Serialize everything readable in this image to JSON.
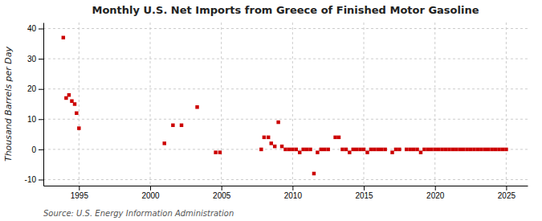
{
  "chart_data": {
    "type": "scatter",
    "title": "Monthly U.S. Net Imports from Greece of Finished Motor Gasoline",
    "ylabel": "Thousand Barrels per Day",
    "annotations": [
      "Source: U.S. Energy Information Administration"
    ],
    "color": "#cc0000",
    "marker": "square",
    "grid": true,
    "xlim": [
      1992.5,
      2026.5
    ],
    "ylim": [
      -12,
      42
    ],
    "xticks": [
      1995,
      2000,
      2005,
      2010,
      2015,
      2020,
      2025
    ],
    "yticks": [
      -10,
      0,
      10,
      20,
      30,
      40
    ],
    "x": [
      1993.9,
      1994.1,
      1994.3,
      1994.5,
      1994.7,
      1994.83,
      1995.0,
      2001.0,
      2001.6,
      2002.2,
      2003.3,
      2004.6,
      2004.9,
      2007.8,
      2008.0,
      2008.3,
      2008.5,
      2008.75,
      2009.0,
      2009.25,
      2009.5,
      2009.75,
      2010.0,
      2010.25,
      2010.5,
      2010.75,
      2011.0,
      2011.25,
      2011.5,
      2011.75,
      2012.0,
      2012.25,
      2012.5,
      2013.0,
      2013.25,
      2013.5,
      2013.75,
      2014.0,
      2014.25,
      2014.5,
      2014.75,
      2015.0,
      2015.25,
      2015.5,
      2015.75,
      2016.0,
      2016.25,
      2016.5,
      2017.0,
      2017.25,
      2017.5,
      2018.0,
      2018.25,
      2018.5,
      2018.75,
      2019.0,
      2019.25,
      2019.5,
      2019.75,
      2020.0,
      2020.25,
      2020.5,
      2020.75,
      2021.0,
      2021.25,
      2021.5,
      2021.75,
      2022.0,
      2022.25,
      2022.5,
      2022.75,
      2023.0,
      2023.25,
      2023.5,
      2023.75,
      2024.0,
      2024.25,
      2024.5,
      2024.75,
      2025.0
    ],
    "values": [
      37,
      17,
      18,
      16,
      15,
      12,
      7,
      2,
      8,
      8,
      14,
      -1,
      -1,
      0,
      4,
      4,
      2,
      1,
      9,
      1,
      0,
      0,
      0,
      0,
      -1,
      0,
      0,
      0,
      -8,
      -1,
      0,
      0,
      0,
      4,
      4,
      0,
      0,
      -1,
      0,
      0,
      0,
      0,
      -1,
      0,
      0,
      0,
      0,
      0,
      -1,
      0,
      0,
      0,
      0,
      0,
      0,
      -1,
      0,
      0,
      0,
      0,
      0,
      0,
      0,
      0,
      0,
      0,
      0,
      0,
      0,
      0,
      0,
      0,
      0,
      0,
      0,
      0,
      0,
      0,
      0,
      0
    ]
  }
}
